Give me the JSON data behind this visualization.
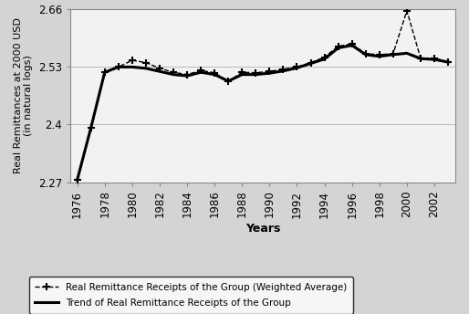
{
  "years": [
    1976,
    1977,
    1978,
    1979,
    1980,
    1981,
    1982,
    1983,
    1984,
    1985,
    1986,
    1987,
    1988,
    1989,
    1990,
    1991,
    1992,
    1993,
    1994,
    1995,
    1996,
    1997,
    1998,
    1999,
    2000,
    2001,
    2002,
    2003
  ],
  "weighted_avg": [
    2.275,
    2.393,
    2.518,
    2.53,
    2.545,
    2.54,
    2.527,
    2.518,
    2.513,
    2.522,
    2.517,
    2.497,
    2.518,
    2.517,
    2.52,
    2.525,
    2.53,
    2.54,
    2.552,
    2.577,
    2.582,
    2.56,
    2.558,
    2.56,
    2.657,
    2.55,
    2.55,
    2.542
  ],
  "trend": [
    2.275,
    2.393,
    2.518,
    2.53,
    2.53,
    2.527,
    2.52,
    2.513,
    2.51,
    2.518,
    2.513,
    2.498,
    2.513,
    2.513,
    2.516,
    2.521,
    2.528,
    2.538,
    2.548,
    2.573,
    2.579,
    2.558,
    2.554,
    2.558,
    2.561,
    2.549,
    2.547,
    2.541
  ],
  "ylim": [
    2.27,
    2.66
  ],
  "yticks": [
    2.27,
    2.4,
    2.53,
    2.66
  ],
  "xtick_labels": [
    "1976",
    "1978",
    "1980",
    "1982",
    "1984",
    "1986",
    "1988",
    "1990",
    "1992",
    "1994",
    "1996",
    "1998",
    "2000",
    "2002"
  ],
  "xtick_positions": [
    1976,
    1978,
    1980,
    1982,
    1984,
    1986,
    1988,
    1990,
    1992,
    1994,
    1996,
    1998,
    2000,
    2002
  ],
  "xlabel": "Years",
  "ylabel_line1": "Real Remittances at 2000 USD",
  "ylabel_line2": "(in natural logs)",
  "legend_label_scatter": "Real Remittance Receipts of the Group (Weighted Average)",
  "legend_label_trend": "Trend of Real Remittance Receipts of the Group",
  "bg_color": "#d4d4d4",
  "plot_bg_color": "#f2f2f2",
  "line_color": "#000000",
  "grid_color": "#cccccc",
  "marker": "+"
}
